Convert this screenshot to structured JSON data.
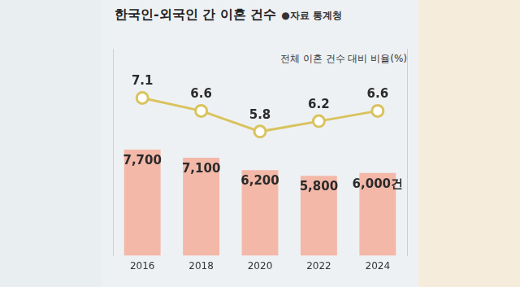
{
  "chart_data": {
    "type": "bar",
    "title": "한국인-외국인 간 이혼 건수",
    "subtitle": "●자료 통계청",
    "categories": [
      "2016",
      "2018",
      "2020",
      "2022",
      "2024"
    ],
    "series": [
      {
        "type": "bar",
        "color": "#f4b8a8",
        "values": [
          7700,
          7100,
          6200,
          5800,
          6000
        ],
        "value_labels": [
          "7,700",
          "7,100",
          "6,200",
          "5,800",
          "6,000건"
        ]
      },
      {
        "name": "전체 이혼 건수 대비 비율(%)",
        "type": "line",
        "axis": "y2",
        "color": "#d9c35e",
        "marker": "circle",
        "values": [
          7.1,
          6.6,
          5.8,
          6.2,
          6.6
        ]
      }
    ],
    "ylim": [
      0,
      15000
    ],
    "y2lim": [
      1,
      9
    ],
    "grid": false,
    "data_labels": true,
    "tick_labels": "x"
  }
}
